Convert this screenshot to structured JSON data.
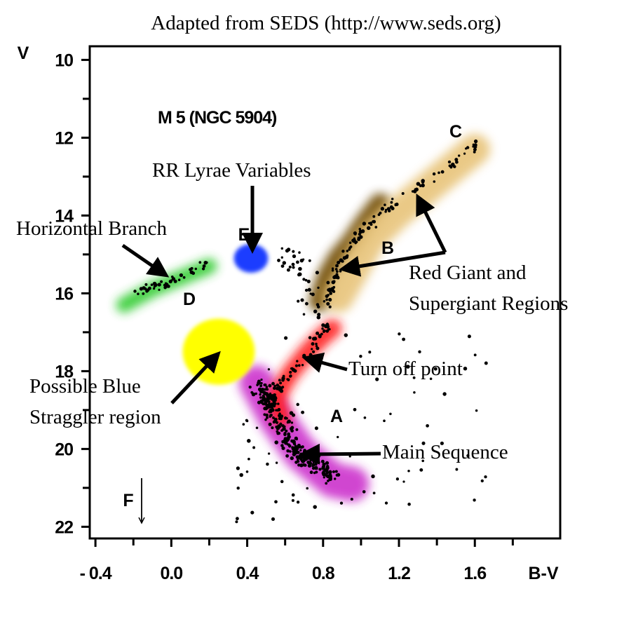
{
  "chart_data": {
    "type": "scatter",
    "title": "M 5 (NGC 5904)",
    "credit": "Adapted from SEDS (http://www.seds.org)",
    "xlabel": "B-V",
    "ylabel": "V",
    "xlim": [
      -0.43,
      2.05
    ],
    "ylim": [
      22.3,
      9.65
    ],
    "y_inverted": true,
    "grid": false,
    "x_ticks": [
      {
        "value": -0.4,
        "label": "- 0.4"
      },
      {
        "value": 0.0,
        "label": "0.0"
      },
      {
        "value": 0.4,
        "label": "0.4"
      },
      {
        "value": 0.8,
        "label": "0.8"
      },
      {
        "value": 1.2,
        "label": "1.2"
      },
      {
        "value": 1.6,
        "label": "1.6"
      }
    ],
    "y_ticks": [
      {
        "value": 10,
        "label": "10"
      },
      {
        "value": 12,
        "label": "12"
      },
      {
        "value": 14,
        "label": "14"
      },
      {
        "value": 16,
        "label": "16"
      },
      {
        "value": 18,
        "label": "18"
      },
      {
        "value": 20,
        "label": "20"
      },
      {
        "value": 22,
        "label": "22"
      }
    ],
    "regions": [
      {
        "letter": "A",
        "label": "Main Sequence",
        "color": "#cc33cc",
        "path": [
          [
            0.45,
            18.3
          ],
          [
            0.55,
            19.2
          ],
          [
            0.68,
            20.1
          ],
          [
            0.85,
            20.8
          ],
          [
            0.95,
            20.9
          ]
        ]
      },
      {
        "letter": "",
        "label": "Turn off point",
        "color": "#ff1a1a",
        "path": [
          [
            0.58,
            19.2
          ],
          [
            0.55,
            18.7
          ],
          [
            0.62,
            18.1
          ],
          [
            0.72,
            17.5
          ],
          [
            0.8,
            17.1
          ],
          [
            0.85,
            16.9
          ]
        ]
      },
      {
        "letter": "B",
        "label": "Red Giant and Supergiant Regions",
        "color": "#6e4a00",
        "path": [
          [
            0.78,
            16.2
          ],
          [
            0.82,
            15.6
          ],
          [
            0.88,
            15.1
          ],
          [
            0.95,
            14.7
          ],
          [
            1.02,
            14.2
          ],
          [
            1.1,
            13.7
          ]
        ]
      },
      {
        "letter": "C",
        "label": "Red Giant and Supergiant Regions",
        "color": "#e8c47a",
        "path": [
          [
            0.88,
            16.1
          ],
          [
            0.95,
            15.5
          ],
          [
            1.05,
            14.6
          ],
          [
            1.2,
            13.9
          ],
          [
            1.4,
            13.1
          ],
          [
            1.6,
            12.3
          ]
        ]
      },
      {
        "letter": "D",
        "label": "Horizontal Branch",
        "color": "#33cc33",
        "path": [
          [
            -0.25,
            16.3
          ],
          [
            -0.1,
            15.9
          ],
          [
            0.05,
            15.6
          ],
          [
            0.2,
            15.3
          ]
        ]
      },
      {
        "letter": "E",
        "label": "RR Lyrae Variables",
        "color": "#1a3cff",
        "center": [
          0.42,
          15.1
        ],
        "radius": [
          0.09,
          0.37
        ]
      },
      {
        "letter": "",
        "label": "Possible Blue Straggler region",
        "color": "#ffff00",
        "center": [
          0.25,
          17.5
        ],
        "radius": [
          0.19,
          0.85
        ]
      }
    ],
    "marker": {
      "letter": "F",
      "x": -0.17,
      "y_from": 20.7,
      "y_to": 21.9
    },
    "annotations": [
      {
        "text": "Horizontal Branch",
        "arrow_to": [
          -0.01,
          15.6
        ]
      },
      {
        "text": "RR Lyrae Variables",
        "arrow_to": [
          0.42,
          15.0
        ]
      },
      {
        "text": "Red Giant and Supergiant Regions",
        "arrow_to": [
          [
            0.9,
            15.5
          ],
          [
            1.27,
            13.4
          ]
        ]
      },
      {
        "text": "Turn off point",
        "arrow_to": [
          0.7,
          18.2
        ]
      },
      {
        "text": "Possible Blue Straggler region",
        "arrow_to": [
          0.26,
          18.0
        ]
      },
      {
        "text": "Main Sequence",
        "arrow_to": [
          0.68,
          20.2
        ]
      }
    ]
  }
}
